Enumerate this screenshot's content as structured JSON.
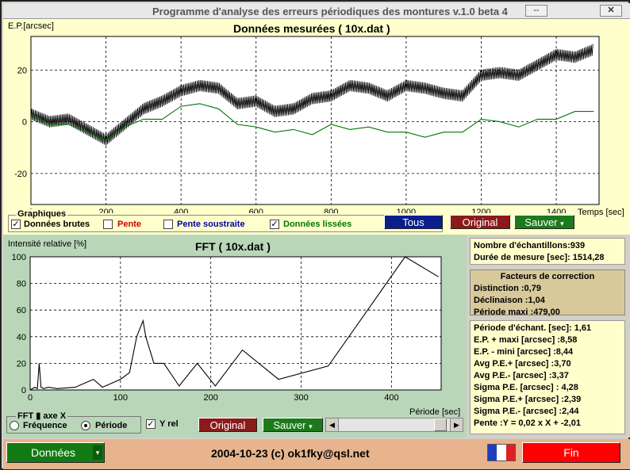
{
  "window": {
    "title": "Programme d'analyse des erreurs périodiques des montures v.1.0 beta 4",
    "restore_icon": "⇔",
    "close_icon": "✕"
  },
  "top_chart": {
    "title": "Données mesurées ( 10x.dat )",
    "ylabel": "E.P.[arcsec]",
    "xlabel": "Temps [sec]",
    "x_ticks": [
      "0",
      "200",
      "400",
      "600",
      "800",
      "1000",
      "1200",
      "1400"
    ],
    "y_ticks": [
      "20",
      "0",
      "-20"
    ]
  },
  "graphiques": {
    "title": "Graphiques",
    "items": [
      {
        "label": "Données brutes",
        "checked": true,
        "color": "#000000"
      },
      {
        "label": "Pente",
        "checked": false,
        "color": "#cc0000"
      },
      {
        "label": "Pente soustraite",
        "checked": false,
        "color": "#0000aa"
      },
      {
        "label": "Données lissées",
        "checked": true,
        "color": "#007700"
      }
    ],
    "tous_label": "Tous",
    "original_label": "Original",
    "sauver_label": "Sauver",
    "sauver_arrow": "▾"
  },
  "fft_chart": {
    "title": "FFT ( 10x.dat )",
    "ylabel": "Intensité relative [%]",
    "xlabel": "Période [sec]",
    "x_ticks": [
      "0",
      "100",
      "200",
      "300",
      "400"
    ],
    "y_ticks": [
      "100",
      "80",
      "60",
      "40",
      "20",
      "0"
    ]
  },
  "fft_controls": {
    "axe_title": "FFT ▮ axe X",
    "frequence_label": "Fréquence",
    "periode_label": "Période",
    "selected": "periode",
    "yrel_label": "Y rel",
    "yrel_checked": true,
    "original_label": "Original",
    "sauver_label": "Sauver",
    "sauver_arrow": "▾",
    "scroll_left": "◀",
    "scroll_right": "▶"
  },
  "summary": {
    "samples": "Nombre d'échantillons:939",
    "duration": "Durée de mesure [sec]: 1514,28"
  },
  "correction": {
    "title": "Facteurs de correction",
    "distinction": "Distinction :0,79",
    "declinaison": "Déclinaison :1,04",
    "periode_maxi": "Période maxi :479,00"
  },
  "stats": [
    "Période d'échant. [sec]: 1,61",
    "E.P. + maxi [arcsec] :8,58",
    "E.P. - mini [arcsec] :8,44",
    "Avg P.E.+ [arcsec] :3,70",
    "Avg P.E.- [arcsec] :3,37",
    "Sigma P.E. [arcsec] : 4,28",
    "Sigma P.E.+ [arcsec] :2,39",
    "Sigma P.E.- [arcsec] :2,44",
    "Pente :Y = 0,02 x X + -2,01"
  ],
  "status_bar": {
    "donnees_label": "Données",
    "donnees_arrow": "▾",
    "copyright": "2004-10-23 (c) ok1fky@qsl.net",
    "fin_label": "Fin",
    "flag_icon": "france-flag"
  },
  "chart_data": [
    {
      "type": "line",
      "title": "Données mesurées ( 10x.dat )",
      "xlabel": "Temps [sec]",
      "ylabel": "E.P.[arcsec]",
      "xlim": [
        0,
        1514
      ],
      "ylim": [
        -32,
        33
      ],
      "grid": true,
      "series": [
        {
          "name": "Données brutes",
          "color": "#000000",
          "x": [
            0,
            50,
            100,
            150,
            200,
            250,
            300,
            350,
            400,
            450,
            500,
            550,
            600,
            650,
            700,
            750,
            800,
            850,
            900,
            950,
            1000,
            1050,
            1100,
            1150,
            1200,
            1250,
            1300,
            1350,
            1400,
            1450,
            1500
          ],
          "y": [
            3,
            0,
            1,
            -3,
            -7,
            -1,
            5,
            8,
            12,
            14,
            13,
            7,
            8,
            4,
            5,
            9,
            10,
            14,
            13,
            10,
            14,
            13,
            11,
            10,
            18,
            19,
            18,
            22,
            26,
            25,
            28
          ]
        },
        {
          "name": "Données lissées",
          "color": "#007700",
          "x": [
            0,
            50,
            100,
            150,
            200,
            250,
            300,
            350,
            400,
            450,
            500,
            550,
            600,
            650,
            700,
            750,
            800,
            850,
            900,
            950,
            1000,
            1050,
            1100,
            1150,
            1200,
            1250,
            1300,
            1350,
            1400,
            1450,
            1500
          ],
          "y": [
            3,
            -1,
            -1,
            -4,
            -7,
            -2,
            1,
            1,
            6,
            7,
            5,
            -1,
            -2,
            -4,
            -3,
            -5,
            -1,
            -3,
            -2,
            -4,
            -4,
            -6,
            -4,
            -4,
            1,
            0,
            -2,
            1,
            1,
            4,
            4
          ]
        }
      ]
    },
    {
      "type": "line",
      "title": "FFT ( 10x.dat )",
      "xlabel": "Période [sec]",
      "ylabel": "Intensité relative [%]",
      "xlim": [
        0,
        455
      ],
      "ylim": [
        0,
        100
      ],
      "grid": true,
      "series": [
        {
          "color": "#000000",
          "x": [
            0,
            5,
            8,
            10,
            12,
            15,
            20,
            30,
            50,
            70,
            80,
            100,
            110,
            118,
            125,
            128,
            137,
            148,
            165,
            185,
            205,
            235,
            275,
            330,
            415,
            452
          ],
          "y": [
            0,
            2,
            1,
            20,
            2,
            1,
            2,
            1,
            2,
            8,
            2,
            8,
            13,
            40,
            52,
            40,
            20,
            20,
            3,
            20,
            3,
            30,
            8,
            18,
            100,
            85
          ]
        }
      ]
    }
  ]
}
